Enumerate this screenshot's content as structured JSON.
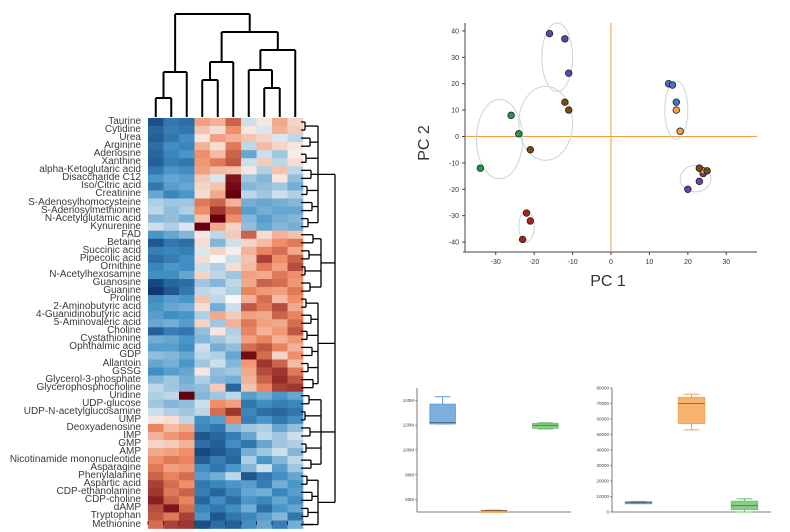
{
  "colors": {
    "heat_low": "#08306b",
    "heat_mid": "#f7f7f7",
    "heat_high": "#67000d",
    "pca_axis": "#f39c3a",
    "box_blue": "#5b9bd5",
    "box_orange": "#f5a04a",
    "box_green": "#6cc06a"
  },
  "chart_data": [
    {
      "type": "heatmap",
      "title": "",
      "row_labels": [
        "Taurine",
        "Cytidine",
        "Urea",
        "Arginine",
        "Adenosine",
        "Xanthine",
        "alpha-Ketoglutaric acid",
        "Disaccharide C12",
        "Iso/Citric acid",
        "Creatinine",
        "S-Adenosylhomocysteine",
        "S-Adenosylmethionine",
        "N-Acetylglutamic acid",
        "Kynurenine",
        "FAD",
        "Betaine",
        "Succinic acid",
        "Pipecolic acid",
        "Ornithine",
        "N-Acetylhexosamine",
        "Guanosine",
        "Guanine",
        "Proline",
        "2-Aminobutyric acid",
        "4-Guanidinobutyric acid",
        "5-Aminovaleric acid",
        "Choline",
        "Cystathionine",
        "Ophthalmic acid",
        "GDP",
        "Allantoin",
        "GSSG",
        "Glycerol-3-phosphate",
        "Glycerophosphocholine",
        "Uridine",
        "UDP-glucose",
        "UDP-N-acetylglucosamine",
        "UMP",
        "Deoxyadenosine",
        "IMP",
        "GMP",
        "AMP",
        "Nicotinamide mononucleotide",
        "Asparagine",
        "Phenylalanine",
        "Aspartic acid",
        "CDP-ethanolamine",
        "CDP-choline",
        "dAMP",
        "Tryptophan",
        "Methionine"
      ],
      "column_count": 10,
      "value_range": [
        -2.5,
        2.5
      ],
      "values": [
        [
          -2.1,
          -1.6,
          -1.7,
          1.0,
          0.8,
          1.6,
          -0.3,
          0.2,
          0.9,
          0.4
        ],
        [
          -1.8,
          -1.5,
          -1.6,
          0.6,
          0.3,
          1.2,
          0.2,
          -0.2,
          0.8,
          0.5
        ],
        [
          -1.9,
          -1.6,
          -1.3,
          0.2,
          1.0,
          0.8,
          0.6,
          0.4,
          -0.2,
          -0.4
        ],
        [
          -1.7,
          -1.3,
          -1.4,
          0.8,
          0.3,
          1.4,
          -0.4,
          0.7,
          0.4,
          0.2
        ],
        [
          -1.8,
          -1.4,
          -1.2,
          1.2,
          0.7,
          1.6,
          -1.0,
          -0.3,
          -0.6,
          0.1
        ],
        [
          -1.9,
          -1.5,
          -1.6,
          1.1,
          1.4,
          1.7,
          -0.3,
          0.5,
          -0.4,
          0.3
        ],
        [
          -1.6,
          -1.2,
          -1.3,
          1.0,
          0.7,
          0.6,
          0.2,
          -0.5,
          0.6,
          -0.4
        ],
        [
          -1.2,
          -1.0,
          -1.1,
          0.5,
          -0.2,
          2.3,
          -0.6,
          -0.8,
          0.2,
          -0.7
        ],
        [
          -1.6,
          -1.1,
          -1.0,
          0.4,
          0.6,
          2.4,
          -0.8,
          -0.7,
          -0.6,
          -0.9
        ],
        [
          -1.0,
          -1.4,
          -1.2,
          0.3,
          0.9,
          2.6,
          -0.4,
          -0.6,
          -0.3,
          -0.5
        ],
        [
          -0.5,
          -0.6,
          -0.6,
          1.4,
          1.6,
          0.8,
          -0.9,
          -1.0,
          -0.9,
          -0.8
        ],
        [
          -0.4,
          -0.7,
          -0.5,
          1.2,
          2.0,
          1.5,
          -1.1,
          -0.9,
          -1.0,
          -1.0
        ],
        [
          -0.8,
          -0.7,
          -0.9,
          0.6,
          2.6,
          1.2,
          -0.8,
          -1.1,
          -0.9,
          -0.8
        ],
        [
          -0.3,
          -0.5,
          -0.2,
          2.6,
          0.9,
          0.4,
          -0.7,
          -1.0,
          -0.8,
          -0.9
        ],
        [
          -1.2,
          -1.0,
          -0.8,
          0.2,
          -0.4,
          0.5,
          1.6,
          0.3,
          0.8,
          0.6
        ],
        [
          -2.0,
          -1.6,
          -1.7,
          0.3,
          -0.8,
          -0.3,
          0.4,
          0.7,
          1.2,
          1.4
        ],
        [
          -1.5,
          -1.4,
          -1.5,
          -0.2,
          0.4,
          0.1,
          0.8,
          1.3,
          1.5,
          0.9
        ],
        [
          -1.7,
          -1.5,
          -1.3,
          0.3,
          0.0,
          -0.3,
          0.6,
          1.9,
          1.2,
          1.6
        ],
        [
          -1.4,
          -1.2,
          -1.3,
          -0.3,
          -0.5,
          0.3,
          0.7,
          1.4,
          1.0,
          1.8
        ],
        [
          -1.3,
          -1.3,
          -1.0,
          0.4,
          -0.4,
          -0.6,
          1.0,
          0.9,
          1.4,
          1.2
        ],
        [
          -2.2,
          -1.8,
          -1.7,
          -0.6,
          -0.8,
          -0.4,
          0.9,
          1.6,
          1.5,
          1.1
        ],
        [
          -2.4,
          -2.0,
          -1.6,
          -0.4,
          -0.3,
          -0.5,
          1.3,
          1.1,
          1.0,
          1.4
        ],
        [
          -1.3,
          -1.1,
          -1.2,
          0.6,
          -0.4,
          0.0,
          0.8,
          1.5,
          0.7,
          1.2
        ],
        [
          -1.2,
          -1.0,
          -0.9,
          0.3,
          -0.9,
          -0.3,
          1.7,
          1.4,
          1.8,
          0.9
        ],
        [
          -1.1,
          -1.3,
          -1.2,
          -0.5,
          0.9,
          0.5,
          1.0,
          0.9,
          1.6,
          1.3
        ],
        [
          -1.0,
          -0.9,
          -1.1,
          0.4,
          -0.6,
          0.8,
          1.4,
          1.0,
          0.9,
          1.5
        ],
        [
          -1.9,
          -1.5,
          -1.6,
          -0.7,
          0.2,
          -0.5,
          1.3,
          0.8,
          1.1,
          1.7
        ],
        [
          -0.9,
          -1.0,
          -1.2,
          -0.8,
          -0.6,
          -0.4,
          1.0,
          1.3,
          0.8,
          1.1
        ],
        [
          -1.1,
          -1.1,
          -1.3,
          -0.3,
          -0.9,
          -0.7,
          1.5,
          1.7,
          1.3,
          0.8
        ],
        [
          -0.7,
          -0.8,
          -1.0,
          -0.4,
          -0.5,
          -1.0,
          2.4,
          1.5,
          0.4,
          1.2
        ],
        [
          -1.0,
          -0.9,
          -1.2,
          -0.6,
          -0.3,
          -0.8,
          1.1,
          2.0,
          1.6,
          0.7
        ],
        [
          -1.3,
          -1.1,
          -1.0,
          0.2,
          -0.7,
          -0.6,
          0.9,
          1.8,
          2.0,
          1.4
        ],
        [
          -0.8,
          -0.6,
          -0.9,
          -0.5,
          -0.8,
          -0.9,
          0.8,
          1.6,
          2.1,
          1.7
        ],
        [
          -0.4,
          -0.6,
          -0.8,
          -0.7,
          0.5,
          -1.8,
          0.6,
          1.3,
          1.9,
          2.0
        ],
        [
          -0.5,
          -0.4,
          2.6,
          -0.8,
          -0.6,
          -0.4,
          -1.1,
          -0.9,
          -1.2,
          -1.0
        ],
        [
          -0.6,
          -0.8,
          -0.7,
          -0.3,
          1.2,
          1.0,
          -1.6,
          -1.3,
          -1.5,
          -1.4
        ],
        [
          -0.3,
          -0.5,
          -0.6,
          -0.4,
          1.5,
          2.0,
          -1.4,
          -1.7,
          -1.8,
          -1.6
        ],
        [
          0.2,
          0.3,
          -0.4,
          -1.3,
          -1.1,
          1.3,
          -1.5,
          -1.2,
          -1.6,
          -1.3
        ],
        [
          1.3,
          0.7,
          0.9,
          -1.4,
          -1.6,
          -0.8,
          -0.6,
          -0.5,
          -1.0,
          -0.7
        ],
        [
          0.8,
          1.1,
          1.3,
          -2.0,
          -1.8,
          -1.5,
          -1.0,
          -0.4,
          -0.6,
          -0.3
        ],
        [
          0.4,
          0.5,
          0.8,
          -1.7,
          -1.9,
          -1.3,
          -1.6,
          -1.0,
          -0.6,
          -0.5
        ],
        [
          0.9,
          1.0,
          1.2,
          -2.2,
          -2.0,
          -1.7,
          -0.9,
          -0.6,
          -0.3,
          -0.8
        ],
        [
          1.2,
          1.4,
          1.3,
          -1.9,
          -1.5,
          -1.8,
          -0.5,
          -1.2,
          -0.8,
          -0.4
        ],
        [
          1.4,
          1.0,
          1.1,
          -1.3,
          -1.6,
          -1.2,
          -0.8,
          -0.3,
          -1.1,
          -0.6
        ],
        [
          1.6,
          1.3,
          1.5,
          -1.1,
          -0.9,
          -0.4,
          -2.0,
          -1.6,
          -1.3,
          -1.0
        ],
        [
          1.9,
          1.5,
          1.2,
          -1.6,
          -1.4,
          -1.2,
          -1.1,
          -1.5,
          -0.9,
          -1.2
        ],
        [
          2.0,
          1.4,
          1.6,
          -1.5,
          -1.8,
          -1.4,
          -1.0,
          -0.9,
          -1.4,
          -1.1
        ],
        [
          2.2,
          1.6,
          1.3,
          -1.8,
          -1.3,
          -1.7,
          -1.2,
          -1.4,
          -1.0,
          -1.3
        ],
        [
          1.8,
          2.3,
          1.5,
          -1.4,
          -1.6,
          -1.3,
          -0.9,
          -1.7,
          -1.2,
          -1.0
        ],
        [
          1.7,
          1.4,
          1.9,
          -1.2,
          -2.0,
          -1.6,
          -1.4,
          -1.1,
          -0.8,
          -1.6
        ],
        [
          1.5,
          1.9,
          2.0,
          -2.1,
          -1.7,
          -1.9,
          -1.3,
          -1.0,
          -1.5,
          -0.9
        ]
      ]
    },
    {
      "type": "scatter",
      "title": "",
      "xlabel": "PC 1",
      "ylabel": "PC 2",
      "xlim": [
        -38,
        38
      ],
      "ylim": [
        -43,
        43
      ],
      "xticks": [
        -30,
        -20,
        -10,
        0,
        10,
        20,
        30
      ],
      "yticks": [
        -40,
        -30,
        -20,
        -10,
        0,
        10,
        20,
        30,
        40
      ],
      "series": [
        {
          "name": "purple",
          "color": "#6a3fb5",
          "points": [
            [
              -16,
              39
            ],
            [
              -12,
              37
            ],
            [
              -11,
              24
            ],
            [
              23,
              -12
            ],
            [
              24,
              -14
            ],
            [
              23,
              -17
            ],
            [
              20,
              -20
            ]
          ]
        },
        {
          "name": "blue",
          "color": "#4a72c8",
          "points": [
            [
              15,
              20
            ],
            [
              16,
              19.5
            ],
            [
              17,
              13
            ]
          ]
        },
        {
          "name": "orange",
          "color": "#f5a04a",
          "points": [
            [
              17,
              10
            ],
            [
              18,
              2
            ],
            [
              24,
              -13
            ]
          ]
        },
        {
          "name": "brown",
          "color": "#7a4a12",
          "points": [
            [
              -12,
              13
            ],
            [
              -11,
              10
            ],
            [
              -21,
              -5
            ],
            [
              23,
              -12
            ],
            [
              25,
              -13
            ]
          ]
        },
        {
          "name": "green",
          "color": "#1f9a4a",
          "points": [
            [
              -26,
              8
            ],
            [
              -24,
              1
            ],
            [
              -34,
              -12
            ]
          ]
        },
        {
          "name": "red",
          "color": "#b0201a",
          "points": [
            [
              -22,
              -29
            ],
            [
              -21,
              -32
            ],
            [
              -23,
              -39
            ]
          ]
        }
      ],
      "ellipses": [
        {
          "cx": -14,
          "cy": 30,
          "rx": 4,
          "ry": 13
        },
        {
          "cx": -17,
          "cy": 5,
          "rx": 7,
          "ry": 14
        },
        {
          "cx": -29,
          "cy": -1,
          "rx": 6,
          "ry": 15
        },
        {
          "cx": 17,
          "cy": 10,
          "rx": 3,
          "ry": 11
        },
        {
          "cx": 22,
          "cy": -16,
          "rx": 4,
          "ry": 5
        },
        {
          "cx": -22,
          "cy": -34,
          "rx": 2,
          "ry": 6
        }
      ]
    },
    {
      "type": "box",
      "title": "",
      "yticks": [
        "140M",
        "120M",
        "100M",
        "80M",
        "60M"
      ],
      "ylim": [
        50,
        150
      ],
      "groups": [
        {
          "name": "blue",
          "color": "#5b9bd5",
          "min": 121,
          "q1": 121,
          "median": 122,
          "q3": 137,
          "max": 143
        },
        {
          "name": "orange",
          "color": "#f5a04a",
          "min": 50.5,
          "q1": 50.8,
          "median": 51.0,
          "q3": 51.3,
          "max": 51.6
        },
        {
          "name": "green",
          "color": "#6cc06a",
          "min": 117,
          "q1": 117.5,
          "median": 120,
          "q3": 121.5,
          "max": 122
        }
      ]
    },
    {
      "type": "box",
      "title": "",
      "yticks": [
        "80000",
        "70000",
        "60000",
        "50000",
        "40000",
        "30000",
        "20000",
        "10000",
        "0"
      ],
      "ylim": [
        0,
        80000
      ],
      "groups": [
        {
          "name": "blue",
          "color": "#5b9bd5",
          "min": 5600,
          "q1": 6000,
          "median": 6300,
          "q3": 6600,
          "max": 6800
        },
        {
          "name": "orange",
          "color": "#f5a04a",
          "min": 53000,
          "q1": 57000,
          "median": 70000,
          "q3": 74000,
          "max": 76000
        },
        {
          "name": "green",
          "color": "#6cc06a",
          "min": 0,
          "q1": 1500,
          "median": 4000,
          "q3": 7000,
          "max": 8500
        }
      ]
    }
  ]
}
